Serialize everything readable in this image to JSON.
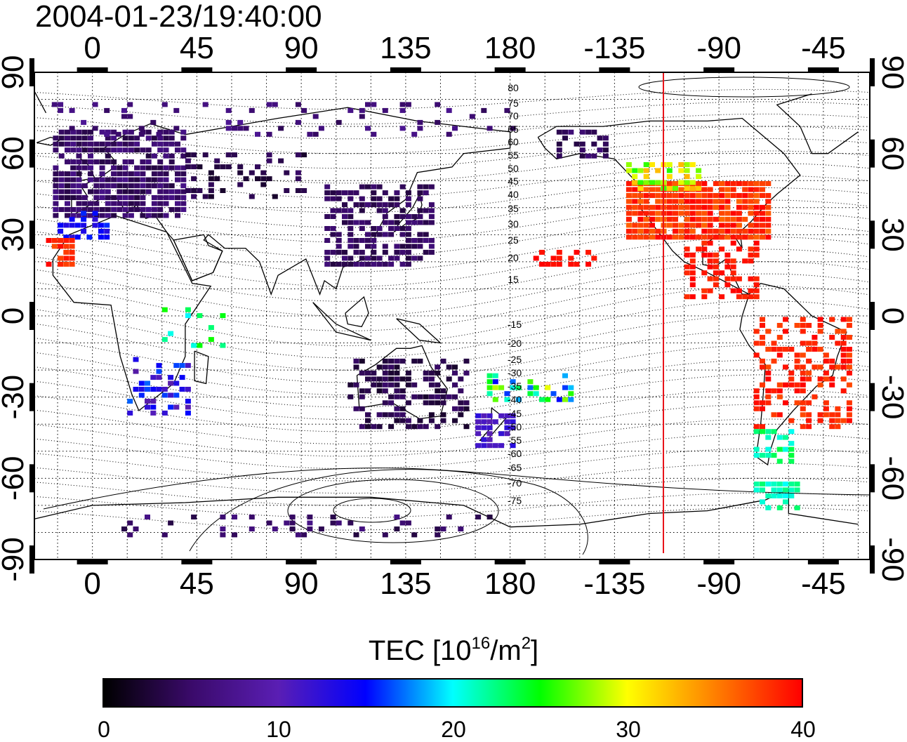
{
  "title": "2004-01-23/19:40:00",
  "map": {
    "lon_labels": [
      "0",
      "45",
      "90",
      "135",
      "180",
      "-135",
      "-90",
      "-45"
    ],
    "lat_labels": [
      "90",
      "60",
      "30",
      "0",
      "-30",
      "-60",
      "-90"
    ],
    "contour_labels_north": [
      "80",
      "75",
      "70",
      "65",
      "60",
      "55",
      "50",
      "45",
      "40",
      "35",
      "30",
      "25",
      "20",
      "15"
    ],
    "contour_labels_south": [
      "-15",
      "-20",
      "-25",
      "-30",
      "-35",
      "-40",
      "-45",
      "-50",
      "-55",
      "-60",
      "-65",
      "-70",
      "-75"
    ],
    "terminator_color": "#e8141a",
    "grid": true
  },
  "colorbar": {
    "title_prefix": "TEC  [10",
    "title_exp1": "16",
    "title_mid": "/m",
    "title_exp2": "2",
    "title_suffix": "]",
    "ticks": [
      "0",
      "10",
      "20",
      "30",
      "40"
    ],
    "range": [
      0,
      40
    ],
    "colormap": [
      "#000000",
      "#3a0a6a",
      "#5a1eb4",
      "#0000ff",
      "#00ffff",
      "#00ff00",
      "#ffff00",
      "#ff8000",
      "#ff0000"
    ]
  }
}
